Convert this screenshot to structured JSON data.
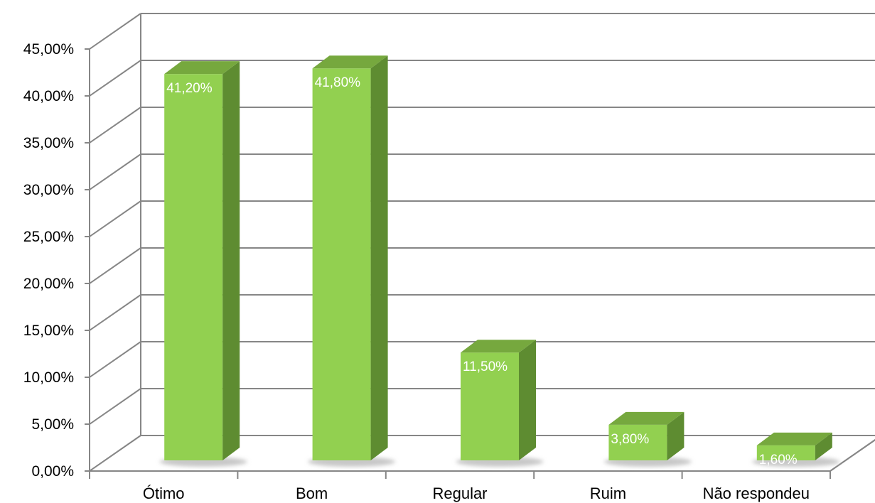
{
  "chart_data": {
    "type": "bar",
    "style": "3d-column",
    "categories": [
      "Ótimo",
      "Bom",
      "Regular",
      "Ruim",
      "Não respondeu"
    ],
    "values": [
      41.2,
      41.8,
      11.5,
      3.8,
      1.6
    ],
    "data_labels": [
      "41,20%",
      "41,80%",
      "11,50%",
      "3,80%",
      "1,60%"
    ],
    "y_ticks": [
      "0,00%",
      "5,00%",
      "10,00%",
      "15,00%",
      "20,00%",
      "25,00%",
      "30,00%",
      "35,00%",
      "40,00%",
      "45,00%"
    ],
    "ylim": [
      0,
      45
    ],
    "grid": true,
    "legend": "none",
    "colors": {
      "bar_front": "#92d050",
      "bar_side": "#5e8c31",
      "bar_top": "#76a83e",
      "grid": "#868686",
      "shadow": "#c8c8c8"
    }
  }
}
